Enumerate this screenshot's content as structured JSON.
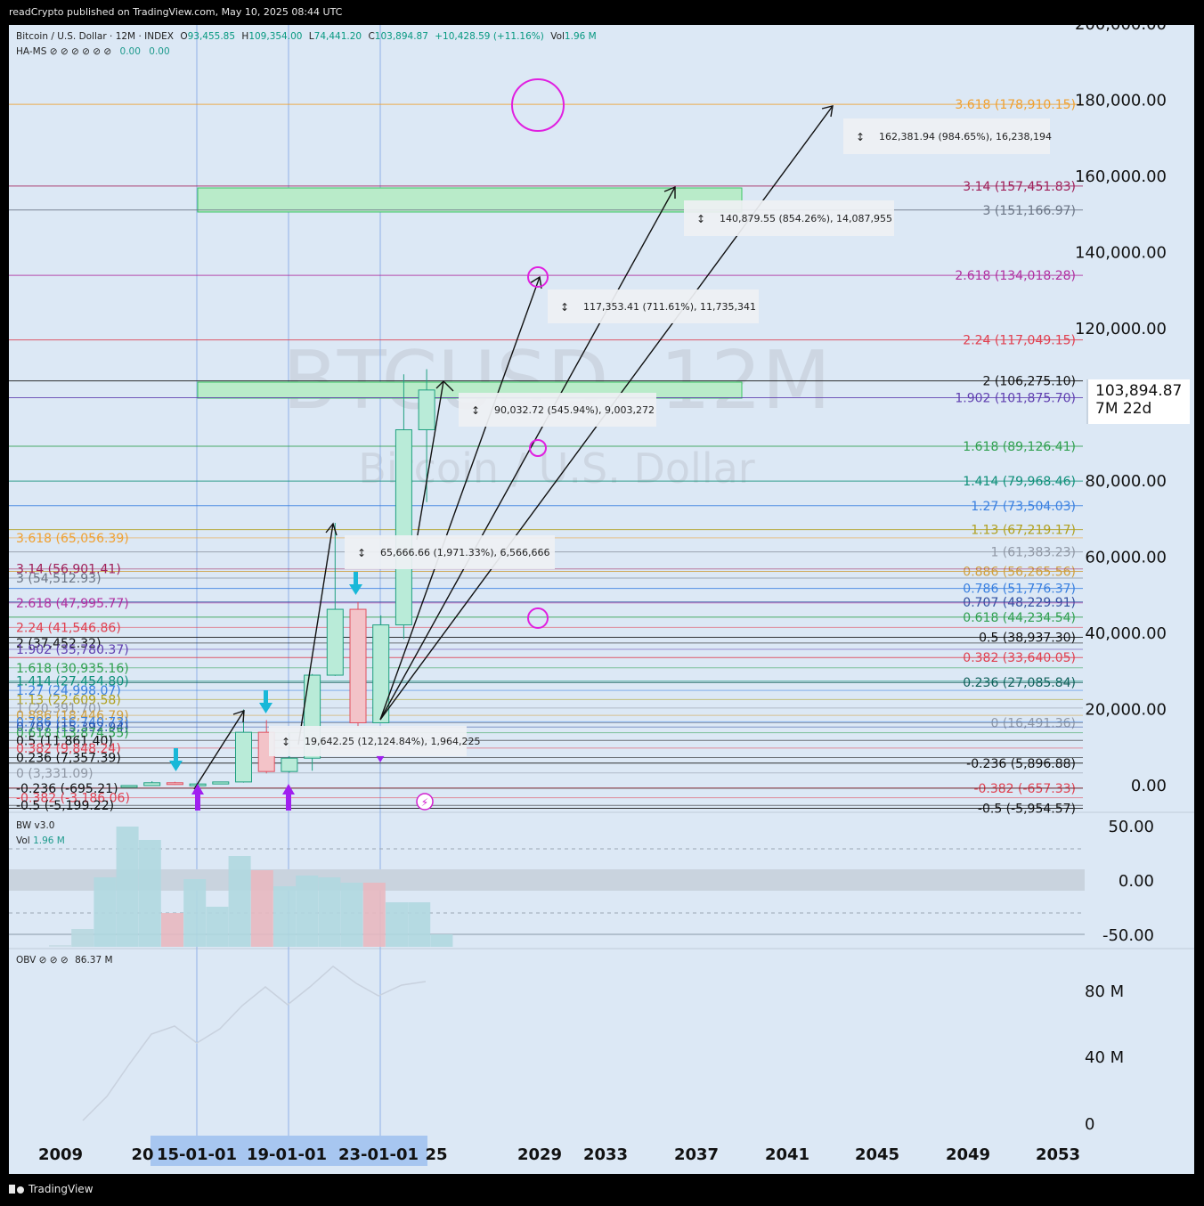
{
  "header": {
    "published": "readCrypto published on TradingView.com, May 10, 2025 08:44 UTC"
  },
  "legend": {
    "symbol": "Bitcoin / U.S. Dollar · 12M · INDEX",
    "o_label": "O",
    "o": "93,455.85",
    "h_label": "H",
    "h": "109,354.00",
    "l_label": "L",
    "l": "74,441.20",
    "c_label": "C",
    "c": "103,894.87",
    "change": "+10,428.59 (+11.16%)",
    "vol_label": "Vol",
    "vol": "1.96 M",
    "indicator": "HA-MS ⊘ ⊘ ⊘ ⊘ ⊘ ⊘",
    "ind_v1": "0.00",
    "ind_v2": "0.00"
  },
  "watermark": {
    "symbol": "BTCUSD, 12M",
    "name": "Bitcoin / U.S. Dollar"
  },
  "price_axis": [
    "200,000.00",
    "180,000.00",
    "160,000.00",
    "140,000.00",
    "120,000.00",
    "80,000.00",
    "60,000.00",
    "40,000.00",
    "20,000.00",
    "0.00"
  ],
  "current_price": {
    "value": "103,894.87",
    "countdown": "7M 22d"
  },
  "fib_right": [
    {
      "label": "3.618 (178,910.15)",
      "color": "#f0a030"
    },
    {
      "label": "3.14 (157,451.83)",
      "color": "#a0215a"
    },
    {
      "label": "3 (151,166.97)",
      "color": "#6b7585"
    },
    {
      "label": "2.618 (134,018.28)",
      "color": "#b030a0"
    },
    {
      "label": "2.24 (117,049.15)",
      "color": "#e04050"
    },
    {
      "label": "2 (106,275.10)",
      "color": "#111111"
    },
    {
      "label": "1.902 (101,875.70)",
      "color": "#6040b0"
    },
    {
      "label": "1.618 (89,126.41)",
      "color": "#30a050"
    },
    {
      "label": "1.414 (79,968.46)",
      "color": "#10907a"
    },
    {
      "label": "1.27 (73,504.03)",
      "color": "#3a80e0"
    },
    {
      "label": "1.13 (67,219.17)",
      "color": "#b0a020"
    },
    {
      "label": "1 (61,383.23)",
      "color": "#9098a5"
    },
    {
      "label": "0.886 (56,265.56)",
      "color": "#d0a040"
    },
    {
      "label": "0.786 (51,776.37)",
      "color": "#3a80e0"
    },
    {
      "label": "0.707 (48,229.91)",
      "color": "#3050a0"
    },
    {
      "label": "0.618 (44,234.54)",
      "color": "#30a050"
    },
    {
      "label": "0.5 (38,937.30)",
      "color": "#111111"
    },
    {
      "label": "0.382 (33,640.05)",
      "color": "#e04050"
    },
    {
      "label": "0.236 (27,085.84)",
      "color": "#10605a"
    },
    {
      "label": "0 (16,491.36)",
      "color": "#9098a5"
    },
    {
      "label": "-0.236 (5,896.88)",
      "color": "#111111"
    },
    {
      "label": "-0.382 (-657.33)",
      "color": "#e04050"
    },
    {
      "label": "-0.5 (-5,954.57)",
      "color": "#111111"
    }
  ],
  "fib_left": [
    {
      "label": "3.618 (65,056.39)",
      "color": "#f0a030"
    },
    {
      "label": "3.14 (56,901.41)",
      "color": "#a0215a"
    },
    {
      "label": "3 (54,512.93)",
      "color": "#6b7585"
    },
    {
      "label": "2.618 (47,995.77)",
      "color": "#b030a0"
    },
    {
      "label": "2.24 (41,546.86)",
      "color": "#e04050"
    },
    {
      "label": "2 (37,452.32)",
      "color": "#111111"
    },
    {
      "label": "1.902 (35,780.37)",
      "color": "#6040b0"
    },
    {
      "label": "1.618 (30,935.16)",
      "color": "#30a050"
    },
    {
      "label": "1.414 (27,454.80)",
      "color": "#10907a"
    },
    {
      "label": "1.27 (24,998.07)",
      "color": "#3a80e0"
    },
    {
      "label": "1.13 (22,609.58)",
      "color": "#b0a020"
    },
    {
      "label": "1 (20,391.70)",
      "color": "#9098a5"
    },
    {
      "label": "0.886 (18,446.79)",
      "color": "#d0a040"
    },
    {
      "label": "0.786 (16,740.73)",
      "color": "#3a80e0"
    },
    {
      "label": "0.707 (15,392.94)",
      "color": "#3050a0"
    },
    {
      "label": "0.618 (13,874.55)",
      "color": "#30a050"
    },
    {
      "label": "0.5 (11,861.40)",
      "color": "#111111"
    },
    {
      "label": "0.382 (9,848.24)",
      "color": "#e04050"
    },
    {
      "label": "0.236 (7,357.39)",
      "color": "#111111"
    },
    {
      "label": "0 (3,331.09)",
      "color": "#9098a5"
    },
    {
      "label": "-0.236 (-695.21)",
      "color": "#111111"
    },
    {
      "label": "-0.382 (-3,186.06)",
      "color": "#e04050"
    },
    {
      "label": "-0.5 (-5,199.22)",
      "color": "#111111"
    }
  ],
  "measures": [
    "162,381.94 (984.65%), 16,238,194",
    "140,879.55 (854.26%), 14,087,955",
    "117,353.41 (711.61%), 11,735,341",
    "90,032.72 (545.94%), 9,003,272",
    "65,666.66 (1,971.33%), 6,566,666",
    "19,642.25 (12,124.84%), 1,964,225"
  ],
  "bw_panel": {
    "title": "BW v3.0",
    "vol_label": "Vol",
    "vol": "1.96 M",
    "axis": [
      "50.00",
      "0.00",
      "-50.00"
    ]
  },
  "obv_panel": {
    "title": "OBV ⊘ ⊘ ⊘",
    "value": "86.37 M",
    "axis": [
      "80 M",
      "40 M",
      "0"
    ]
  },
  "time_axis": [
    "2009",
    "20",
    "15-01-01",
    "19-01-01",
    "23-01-01",
    "25",
    "2029",
    "2033",
    "2037",
    "2041",
    "2045",
    "2049",
    "2053"
  ],
  "footer": {
    "brand": "TradingView"
  },
  "chart_data": {
    "type": "candlestick",
    "title": "Bitcoin / U.S. Dollar · 12M · INDEX",
    "ylim": [
      -6000,
      200000
    ],
    "candles": [
      {
        "year": "2012",
        "o": 5,
        "h": 15,
        "l": 4,
        "c": 13
      },
      {
        "year": "2013",
        "o": 13,
        "h": 1150,
        "l": 13,
        "c": 750
      },
      {
        "year": "2014",
        "o": 750,
        "h": 1000,
        "l": 200,
        "c": 320
      },
      {
        "year": "2015",
        "o": 320,
        "h": 470,
        "l": 170,
        "c": 430
      },
      {
        "year": "2016",
        "o": 430,
        "h": 980,
        "l": 360,
        "c": 960
      },
      {
        "year": "2017",
        "o": 960,
        "h": 20000,
        "l": 780,
        "c": 14000
      },
      {
        "year": "2018",
        "o": 14000,
        "h": 17200,
        "l": 3200,
        "c": 3700
      },
      {
        "year": "2019",
        "o": 3700,
        "h": 13800,
        "l": 3400,
        "c": 7200
      },
      {
        "year": "2020",
        "o": 7200,
        "h": 29300,
        "l": 3900,
        "c": 29000
      },
      {
        "year": "2021",
        "o": 29000,
        "h": 69000,
        "l": 28800,
        "c": 46300
      },
      {
        "year": "2022",
        "o": 46300,
        "h": 48200,
        "l": 15500,
        "c": 16500
      },
      {
        "year": "2023",
        "o": 16500,
        "h": 44700,
        "l": 16400,
        "c": 42200
      },
      {
        "year": "2024",
        "o": 42200,
        "h": 108000,
        "l": 38500,
        "c": 93450
      },
      {
        "year": "2025",
        "o": 93455.85,
        "h": 109354.0,
        "l": 74441.2,
        "c": 103894.87
      }
    ]
  }
}
